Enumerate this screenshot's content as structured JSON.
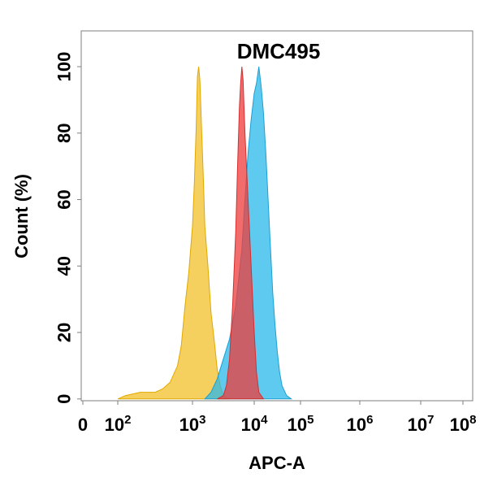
{
  "chart_data": {
    "type": "area",
    "title": "DMC495",
    "xlabel": "APC-A",
    "ylabel": "Count  (%)",
    "x_scale": "log",
    "xlim": [
      0,
      100000000
    ],
    "ylim": [
      0,
      110
    ],
    "y_ticks": [
      "0",
      "20",
      "40",
      "60",
      "80",
      "100"
    ],
    "x_ticks": [
      {
        "base": "0",
        "exp": ""
      },
      {
        "base": "10",
        "exp": "2"
      },
      {
        "base": "10",
        "exp": "3"
      },
      {
        "base": "10",
        "exp": "4"
      },
      {
        "base": "10",
        "exp": "5"
      },
      {
        "base": "10",
        "exp": "6"
      },
      {
        "base": "10",
        "exp": "7"
      },
      {
        "base": "10",
        "exp": "8"
      }
    ],
    "grid": false,
    "series": [
      {
        "color": "#f5c842",
        "stroke": "#e0a800",
        "points": [
          [
            2,
            0
          ],
          [
            2.1,
            1
          ],
          [
            2.3,
            2
          ],
          [
            2.5,
            2
          ],
          [
            2.6,
            3
          ],
          [
            2.7,
            5
          ],
          [
            2.8,
            10
          ],
          [
            2.85,
            16
          ],
          [
            2.9,
            28
          ],
          [
            2.95,
            38
          ],
          [
            3.0,
            52
          ],
          [
            3.03,
            65
          ],
          [
            3.06,
            82
          ],
          [
            3.08,
            97
          ],
          [
            3.1,
            100
          ],
          [
            3.12,
            96
          ],
          [
            3.15,
            80
          ],
          [
            3.18,
            64
          ],
          [
            3.2,
            52
          ],
          [
            3.25,
            40
          ],
          [
            3.3,
            26
          ],
          [
            3.35,
            18
          ],
          [
            3.4,
            9
          ],
          [
            3.45,
            4
          ],
          [
            3.5,
            1
          ],
          [
            3.6,
            0
          ]
        ]
      },
      {
        "color": "#29b8ea",
        "stroke": "#1a9fd4",
        "points": [
          [
            3.2,
            0
          ],
          [
            3.3,
            2
          ],
          [
            3.4,
            6
          ],
          [
            3.5,
            12
          ],
          [
            3.6,
            18
          ],
          [
            3.7,
            28
          ],
          [
            3.8,
            45
          ],
          [
            3.85,
            60
          ],
          [
            3.9,
            74
          ],
          [
            3.95,
            84
          ],
          [
            4.0,
            92
          ],
          [
            4.05,
            95
          ],
          [
            4.1,
            100
          ],
          [
            4.15,
            94
          ],
          [
            4.2,
            86
          ],
          [
            4.25,
            74
          ],
          [
            4.3,
            60
          ],
          [
            4.35,
            46
          ],
          [
            4.4,
            32
          ],
          [
            4.45,
            22
          ],
          [
            4.5,
            14
          ],
          [
            4.55,
            8
          ],
          [
            4.6,
            4
          ],
          [
            4.7,
            1
          ],
          [
            4.8,
            0
          ]
        ]
      },
      {
        "color": "#ef3b3b",
        "stroke": "#d32f2f",
        "points": [
          [
            3.4,
            0
          ],
          [
            3.5,
            1
          ],
          [
            3.55,
            4
          ],
          [
            3.6,
            12
          ],
          [
            3.65,
            28
          ],
          [
            3.7,
            50
          ],
          [
            3.73,
            70
          ],
          [
            3.76,
            88
          ],
          [
            3.78,
            95
          ],
          [
            3.8,
            100
          ],
          [
            3.82,
            96
          ],
          [
            3.85,
            80
          ],
          [
            3.9,
            60
          ],
          [
            3.95,
            40
          ],
          [
            4.0,
            20
          ],
          [
            4.05,
            8
          ],
          [
            4.1,
            2
          ],
          [
            4.2,
            0
          ]
        ]
      }
    ]
  }
}
